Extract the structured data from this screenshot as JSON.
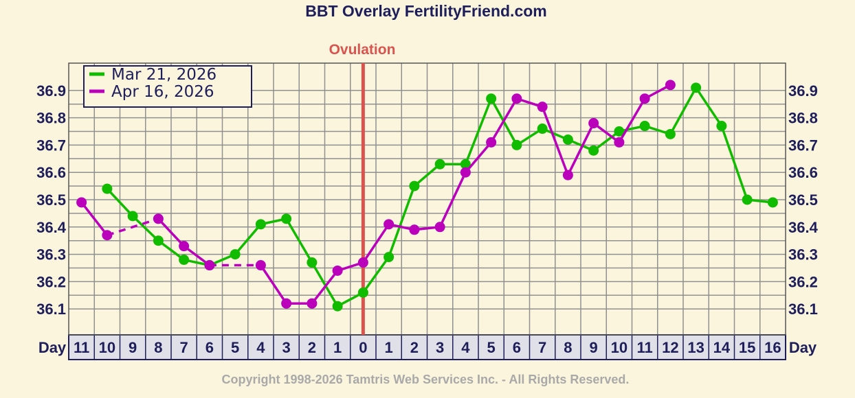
{
  "chart_data": {
    "type": "line",
    "title": "BBT Overlay FertilityFriend.com",
    "annotation": "Ovulation",
    "x_axis_label": "Day",
    "categories": [
      "11",
      "10",
      "9",
      "8",
      "7",
      "6",
      "5",
      "4",
      "3",
      "2",
      "1",
      "0",
      "1",
      "2",
      "3",
      "4",
      "5",
      "6",
      "7",
      "8",
      "9",
      "10",
      "11",
      "12",
      "13",
      "14",
      "15",
      "16"
    ],
    "ylim": [
      36.0,
      37.0
    ],
    "yticks": [
      "36.1",
      "36.2",
      "36.3",
      "36.4",
      "36.5",
      "36.6",
      "36.7",
      "36.8",
      "36.9"
    ],
    "ovulation_index": 11,
    "grid": true,
    "legend_position": "top-left",
    "series": [
      {
        "name": "Mar 21, 2026",
        "color": "#11bb00",
        "values": [
          null,
          36.54,
          36.44,
          36.35,
          36.28,
          36.26,
          36.3,
          36.41,
          36.43,
          36.27,
          36.11,
          36.16,
          36.29,
          36.55,
          36.63,
          36.63,
          36.87,
          36.7,
          36.76,
          36.72,
          36.68,
          36.75,
          36.77,
          36.74,
          36.91,
          36.77,
          36.5,
          36.49
        ],
        "dashed_segments": []
      },
      {
        "name": "Apr 16, 2026",
        "color": "#bb00bb",
        "values": [
          36.49,
          36.37,
          null,
          36.43,
          36.33,
          36.26,
          null,
          36.26,
          36.12,
          36.12,
          36.24,
          36.27,
          36.41,
          36.39,
          36.4,
          36.6,
          36.71,
          36.87,
          36.84,
          36.59,
          36.78,
          36.71,
          36.87,
          36.92,
          null,
          null,
          null,
          null
        ],
        "dashed_segments": [
          [
            1,
            3
          ],
          [
            5,
            7
          ]
        ]
      }
    ]
  },
  "footer": {
    "copyright": "Copyright 1998-2026 Tamtris Web Services Inc. - All Rights Reserved."
  }
}
